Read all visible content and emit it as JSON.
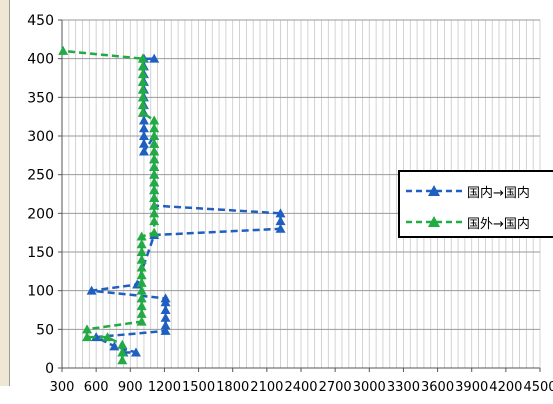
{
  "chart_data": {
    "type": "line",
    "title": "",
    "xlabel": "",
    "ylabel": "",
    "xlim": [
      300,
      4500
    ],
    "ylim": [
      0,
      450
    ],
    "x_ticks": [
      300,
      600,
      900,
      1200,
      1500,
      1800,
      2100,
      2400,
      2700,
      3000,
      3300,
      3600,
      3900,
      4200,
      4500
    ],
    "y_ticks": [
      0,
      50,
      100,
      150,
      200,
      250,
      300,
      350,
      400,
      450
    ],
    "grid": true,
    "legend_position": "right",
    "series": [
      {
        "name": "国内→国内",
        "color": "#1f5fbf",
        "marker": "triangle",
        "line_style": "dashed",
        "points": [
          [
            840,
            20
          ],
          [
            950,
            20
          ],
          [
            760,
            28
          ],
          [
            600,
            40
          ],
          [
            1210,
            48
          ],
          [
            1210,
            55
          ],
          [
            1210,
            65
          ],
          [
            1210,
            75
          ],
          [
            1210,
            85
          ],
          [
            1210,
            90
          ],
          [
            560,
            100
          ],
          [
            960,
            108
          ],
          [
            1110,
            172
          ],
          [
            2220,
            180
          ],
          [
            2220,
            190
          ],
          [
            2220,
            200
          ],
          [
            1110,
            210
          ],
          [
            1110,
            220
          ],
          [
            1110,
            230
          ],
          [
            1110,
            240
          ],
          [
            1110,
            250
          ],
          [
            1110,
            260
          ],
          [
            1110,
            270
          ],
          [
            1110,
            280
          ],
          [
            1110,
            290
          ],
          [
            1110,
            300
          ],
          [
            1020,
            280
          ],
          [
            1020,
            290
          ],
          [
            1020,
            300
          ],
          [
            1020,
            310
          ],
          [
            1020,
            320
          ],
          [
            1020,
            330
          ],
          [
            1020,
            340
          ],
          [
            1020,
            350
          ],
          [
            1020,
            360
          ],
          [
            1020,
            370
          ],
          [
            1020,
            380
          ],
          [
            1020,
            390
          ],
          [
            1020,
            400
          ],
          [
            1110,
            400
          ]
        ]
      },
      {
        "name": "国外→国内",
        "color": "#22aa44",
        "marker": "triangle",
        "line_style": "dashed",
        "points": [
          [
            830,
            10
          ],
          [
            830,
            20
          ],
          [
            830,
            30
          ],
          [
            700,
            40
          ],
          [
            520,
            40
          ],
          [
            520,
            50
          ],
          [
            1000,
            60
          ],
          [
            1000,
            70
          ],
          [
            1000,
            80
          ],
          [
            1000,
            90
          ],
          [
            1000,
            100
          ],
          [
            1000,
            110
          ],
          [
            1000,
            120
          ],
          [
            1000,
            130
          ],
          [
            1000,
            140
          ],
          [
            1000,
            150
          ],
          [
            1000,
            160
          ],
          [
            1000,
            170
          ],
          [
            1110,
            175
          ],
          [
            1110,
            190
          ],
          [
            1110,
            200
          ],
          [
            1110,
            210
          ],
          [
            1110,
            220
          ],
          [
            1110,
            230
          ],
          [
            1110,
            240
          ],
          [
            1110,
            250
          ],
          [
            1110,
            260
          ],
          [
            1110,
            270
          ],
          [
            1110,
            280
          ],
          [
            1110,
            290
          ],
          [
            1110,
            300
          ],
          [
            1110,
            310
          ],
          [
            1110,
            320
          ],
          [
            1010,
            330
          ],
          [
            1010,
            340
          ],
          [
            1010,
            350
          ],
          [
            1010,
            360
          ],
          [
            1010,
            370
          ],
          [
            1010,
            380
          ],
          [
            1010,
            390
          ],
          [
            1010,
            400
          ],
          [
            310,
            410
          ]
        ]
      }
    ]
  }
}
